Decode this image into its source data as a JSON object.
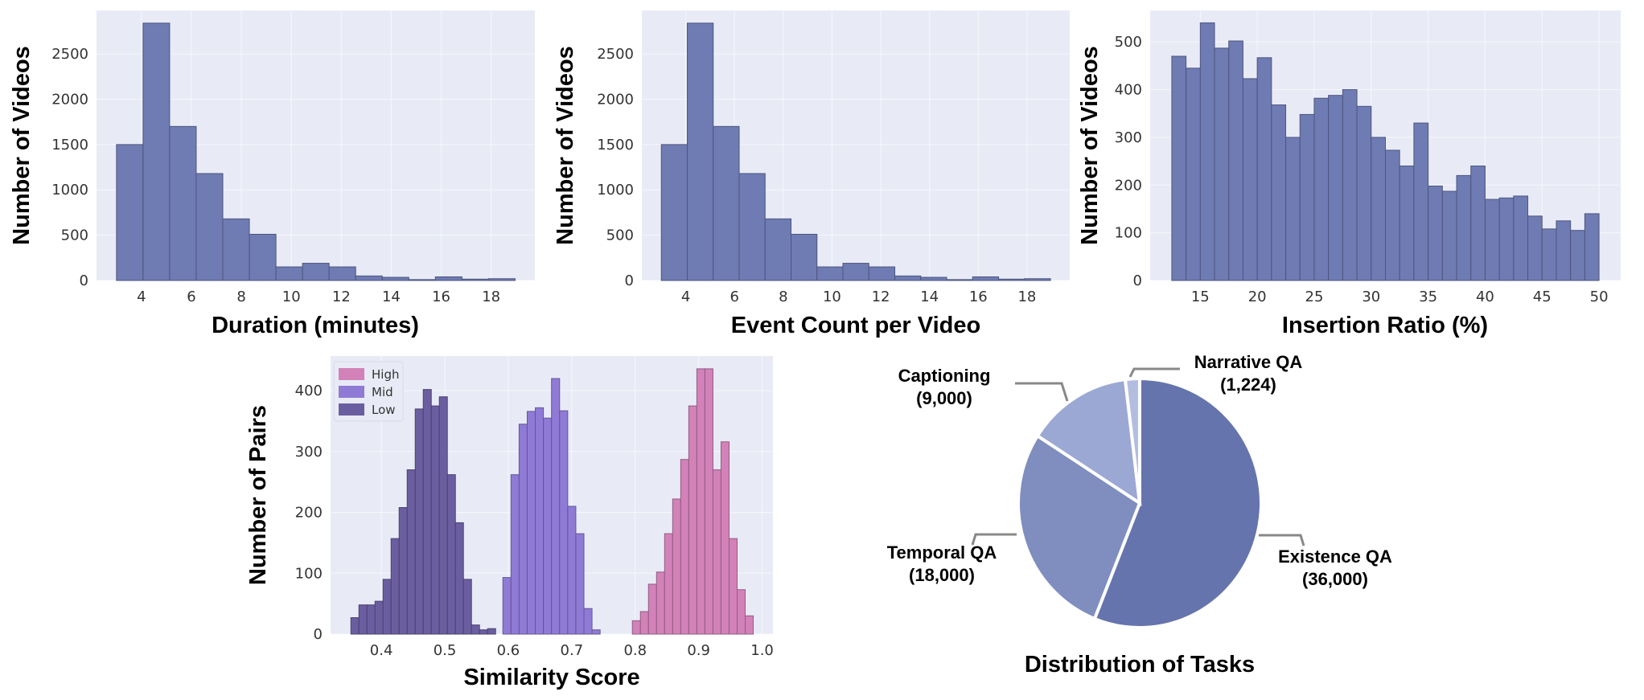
{
  "chart_data": [
    {
      "type": "bar",
      "id": "duration",
      "title": "",
      "xlabel": "Duration (minutes)",
      "ylabel": "Number of Videos",
      "bin_start": 3.0,
      "bin_width": 1.064,
      "values": [
        1500,
        2840,
        1700,
        1180,
        680,
        510,
        150,
        190,
        150,
        50,
        35,
        10,
        40,
        15,
        20
      ],
      "xlim": [
        2.2,
        19.75
      ],
      "ylim": [
        0,
        2980
      ],
      "xticks": [
        4,
        6,
        8,
        10,
        12,
        14,
        16,
        18
      ],
      "yticks": [
        0,
        500,
        1000,
        1500,
        2000,
        2500
      ],
      "color": "#6f7bb3",
      "grid": true
    },
    {
      "type": "bar",
      "id": "event-count",
      "title": "",
      "xlabel": "Event Count per Video",
      "ylabel": "Number of Videos",
      "bin_start": 3.0,
      "bin_width": 1.064,
      "values": [
        1500,
        2840,
        1700,
        1180,
        680,
        510,
        150,
        190,
        150,
        50,
        35,
        10,
        40,
        15,
        20
      ],
      "xlim": [
        2.2,
        19.75
      ],
      "ylim": [
        0,
        2980
      ],
      "xticks": [
        4,
        6,
        8,
        10,
        12,
        14,
        16,
        18
      ],
      "yticks": [
        0,
        500,
        1000,
        1500,
        2000,
        2500
      ],
      "color": "#6f7bb3",
      "grid": true
    },
    {
      "type": "bar",
      "id": "insertion-ratio",
      "title": "",
      "xlabel": "Insertion Ratio (%)",
      "ylabel": "Number of Videos",
      "bin_start": 12.5,
      "bin_width": 1.25,
      "values": [
        470,
        445,
        540,
        487,
        502,
        423,
        467,
        368,
        300,
        348,
        382,
        388,
        400,
        365,
        300,
        273,
        240,
        330,
        198,
        187,
        220,
        240,
        170,
        173,
        177,
        135,
        108,
        125,
        105,
        140
      ],
      "xlim": [
        10.6,
        51.9
      ],
      "ylim": [
        0,
        566
      ],
      "xticks": [
        15,
        20,
        25,
        30,
        35,
        40,
        45,
        50
      ],
      "yticks": [
        0,
        100,
        200,
        300,
        400,
        500
      ],
      "color": "#6f7bb3",
      "grid": true
    },
    {
      "type": "bar",
      "id": "similarity",
      "title": "",
      "xlabel": "Similarity Score",
      "ylabel": "Number of Pairs",
      "xlim": [
        0.32,
        1.017
      ],
      "ylim": [
        0,
        457
      ],
      "xticks": [
        "0.4",
        "0.5",
        "0.6",
        "0.7",
        "0.8",
        "0.9",
        "1.0"
      ],
      "yticks": [
        0,
        100,
        200,
        300,
        400
      ],
      "legend_position": "top-left",
      "grid": true,
      "series": [
        {
          "name": "High",
          "color": "#d282b9",
          "bin_start": 0.7955,
          "bin_width": 0.0127,
          "values": [
            22,
            37,
            82,
            102,
            165,
            222,
            287,
            375,
            436,
            436,
            270,
            316,
            157,
            73,
            30
          ]
        },
        {
          "name": "Mid",
          "color": "#8f7bd6",
          "bin_start": 0.5915,
          "bin_width": 0.01277,
          "values": [
            93,
            262,
            345,
            366,
            372,
            355,
            420,
            367,
            210,
            165,
            42,
            7
          ]
        },
        {
          "name": "Low",
          "color": "#6b5ea0",
          "bin_start": 0.352,
          "bin_width": 0.01267,
          "values": [
            27,
            48,
            48,
            54,
            90,
            157,
            208,
            270,
            370,
            402,
            375,
            390,
            262,
            183,
            90,
            15,
            7,
            9
          ]
        }
      ]
    },
    {
      "type": "pie",
      "id": "tasks",
      "title": "Distribution of Tasks",
      "slices": [
        {
          "label": "Existence QA",
          "value": 36000,
          "value_text": "(36,000)",
          "color": "#6574ad"
        },
        {
          "label": "Temporal QA",
          "value": 18000,
          "value_text": "(18,000)",
          "color": "#7f8ebf"
        },
        {
          "label": "Captioning",
          "value": 9000,
          "value_text": "(9,000)",
          "color": "#9ba8d4"
        },
        {
          "label": "Narrative QA",
          "value": 1224,
          "value_text": "(1,224)",
          "color": "#b3bde0"
        }
      ]
    }
  ]
}
